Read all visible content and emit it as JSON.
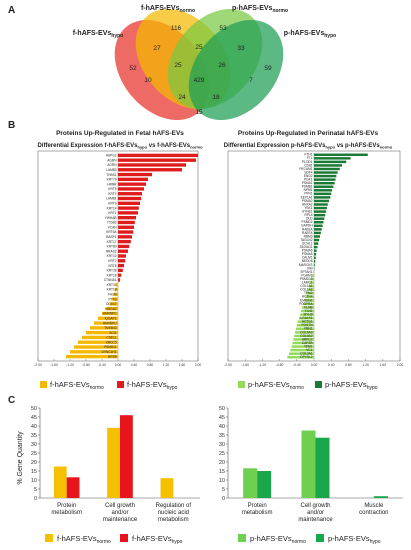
{
  "panels": {
    "a": "A",
    "b": "B",
    "c": "C"
  },
  "venn": {
    "labels": {
      "f_normo": [
        "f-hAFS-EVs",
        "normo"
      ],
      "f_hypo": [
        "f-hAFS-EVs",
        "hypo"
      ],
      "p_normo": [
        "p-hAFS-EVs",
        "normo"
      ],
      "p_hypo": [
        "p-hAFS-EVs",
        "hypo"
      ]
    },
    "colors": {
      "f_hypo": "#e8302a",
      "f_normo": "#f5b800",
      "p_normo": "#7ac943",
      "p_hypo": "#1e9e54"
    },
    "counts": [
      "116",
      "53",
      "52",
      "27",
      "25",
      "33",
      "59",
      "25",
      "26",
      "10",
      "429",
      "7",
      "24",
      "18",
      "15"
    ]
  },
  "chart_data": [
    {
      "type": "bar",
      "orientation": "horizontal",
      "title": "Proteins Up-Regulated in Fetal hAFS-EVs",
      "subtitle": [
        "Differential Expression f-hAFS-EVs",
        "hypo",
        " vs f-hAFS-EVs",
        "normo"
      ],
      "xlim": [
        -2.0,
        2.0
      ],
      "xticks": [
        "-2.00",
        "-1.60",
        "-1.20",
        "-0.80",
        "-0.40",
        "0.00",
        "0.40",
        "0.80",
        "1.20",
        "1.60",
        "2.00"
      ],
      "categories": [
        "HSPG2",
        "AGRN",
        "AGRN",
        "LAMB3",
        "THBS1",
        "KRT79",
        "HRNR",
        "KRT5",
        "KRT7",
        "LAMB1",
        "KRT9",
        "KRT14",
        "KRT1",
        "YWHAB",
        "ITGB3",
        "VCAN",
        "KRT6A",
        "BASP1",
        "KRT17",
        "KRT80",
        "RRAS2",
        "KRT10",
        "KRT2",
        "KRT8",
        "KRT28",
        "KRT18",
        "CTNNA1",
        "KRT31",
        "KRT19",
        "FASN",
        "PTX3",
        "DDX17",
        "HMGA2",
        "HNRNPC",
        "IQGAP1",
        "HNRNPU",
        "TMEB43",
        "SCIL",
        "CSE1L",
        "XRCC5",
        "PSMD11",
        "DYNC1H1",
        "RPS9"
      ],
      "values": [
        2.0,
        1.95,
        1.7,
        1.6,
        0.85,
        0.75,
        0.7,
        0.65,
        0.6,
        0.58,
        0.55,
        0.52,
        0.5,
        0.45,
        0.42,
        0.4,
        0.38,
        0.35,
        0.32,
        0.28,
        0.25,
        0.2,
        0.18,
        0.15,
        0.12,
        0.08,
        0.05,
        -0.05,
        -0.08,
        -0.1,
        -0.15,
        -0.2,
        -0.3,
        -0.4,
        -0.5,
        -0.6,
        -0.7,
        -0.8,
        -0.9,
        -1.0,
        -1.1,
        -1.2,
        -1.3
      ],
      "colors": {
        "positive": "#e01b1b",
        "negative": "#f5b800"
      },
      "legend": [
        [
          "f-hAFS-EVs",
          "normo"
        ],
        [
          "f-hAFS-EVs",
          "hypo"
        ]
      ]
    },
    {
      "type": "bar",
      "orientation": "horizontal",
      "title": "Proteins Up-Regulated in Perinatal hAFS-EVs",
      "subtitle": [
        "Differential Expression p-hAFS-EVs",
        "hypo",
        " vs p-hAFS-EVs",
        "normo"
      ],
      "xlim": [
        -2.0,
        2.0
      ],
      "xticks": [
        "-2.00",
        "-1.60",
        "-1.20",
        "-0.80",
        "-0.40",
        "0.00",
        "0.40",
        "0.80",
        "1.20",
        "1.60",
        "2.00"
      ],
      "categories": [
        "FTH1",
        "FTL",
        "PLOD1",
        "CD81",
        "PECAM1",
        "SDF4",
        "ENO2",
        "PGK1",
        "PSMA1",
        "PSMB1",
        "NPM1",
        "PFN1",
        "EEF1A1",
        "PSMA2",
        "ANXA2",
        "YBX1",
        "SYNE1",
        "RPL4",
        "DLD",
        "PSMD2",
        "GAPDH",
        "RAB1A",
        "RAB7A",
        "RBM3",
        "TAGLN2",
        "UCHL1",
        "S100A11",
        "PSMA6",
        "PSMA5",
        "CALM1",
        "NEDD8",
        "MARCKS",
        "VIM",
        "SPTAN1",
        "PGAM1",
        "PSMD13",
        "LAMC1",
        "COL1A1",
        "COL1A2",
        "TPM2",
        "ACTN4",
        "EMILIN1",
        "PDGFRA",
        "FLNB",
        "TLN1",
        "MYH9",
        "LGALS1",
        "ACTG1",
        "POSTN",
        "FBN1",
        "COL6A3",
        "COL6A2",
        "ARPC2",
        "CAPZB",
        "TPM1",
        "VCL",
        "COL3A1",
        "DPYSL2"
      ],
      "values": [
        1.25,
        0.85,
        0.75,
        0.65,
        0.6,
        0.55,
        0.52,
        0.5,
        0.48,
        0.45,
        0.42,
        0.4,
        0.38,
        0.35,
        0.32,
        0.3,
        0.28,
        0.26,
        0.24,
        0.22,
        0.2,
        0.18,
        0.16,
        0.14,
        0.12,
        0.1,
        0.08,
        0.06,
        0.05,
        0.04,
        0.03,
        0.02,
        0.01,
        -0.02,
        -0.05,
        -0.08,
        -0.1,
        -0.12,
        -0.15,
        -0.18,
        -0.2,
        -0.22,
        -0.25,
        -0.28,
        -0.3,
        -0.32,
        -0.35,
        -0.38,
        -0.4,
        -0.42,
        -0.44,
        -0.46,
        -0.48,
        -0.5,
        -0.52,
        -0.55,
        -0.58,
        -0.62
      ],
      "colors": {
        "positive": "#1b7a35",
        "negative": "#96d95b"
      },
      "legend": [
        [
          "p-hAFS-EVs",
          "normo"
        ],
        [
          "p-hAFS-EVs",
          "hypo"
        ]
      ]
    },
    {
      "type": "bar",
      "ylabel": "% Gene Quantity",
      "ylim": [
        0,
        50
      ],
      "yticks": [
        "0",
        "5",
        "10",
        "15",
        "20",
        "25",
        "30",
        "35",
        "40",
        "45",
        "50"
      ],
      "categories": [
        [
          "Protein",
          "metabolism"
        ],
        [
          "Cell growth",
          "and/or",
          "maintenance"
        ],
        [
          "Regulation of",
          "nucleic acid",
          "metabolism"
        ]
      ],
      "series": [
        {
          "name": [
            "f-hAFS-EVs",
            "normo"
          ],
          "color": "#f5c000",
          "values": [
            17.5,
            39,
            11
          ]
        },
        {
          "name": [
            "f-hAFS-EVs",
            "hypo"
          ],
          "color": "#e8141b",
          "values": [
            11.5,
            46,
            0
          ]
        }
      ]
    },
    {
      "type": "bar",
      "ylim": [
        0,
        50
      ],
      "yticks": [
        "0",
        "5",
        "10",
        "15",
        "20",
        "25",
        "30",
        "35",
        "40",
        "45",
        "50"
      ],
      "categories": [
        [
          "Protein",
          "metabolism"
        ],
        [
          "Cell growth",
          "and/or",
          "maintenance"
        ],
        [
          "Muscle",
          "contraction"
        ]
      ],
      "series": [
        {
          "name": [
            "p-hAFS-EVs",
            "normo"
          ],
          "color": "#6fcf4f",
          "values": [
            16.5,
            37.5,
            0
          ]
        },
        {
          "name": [
            "p-hAFS-EVs",
            "hypo"
          ],
          "color": "#1aa64a",
          "values": [
            15,
            33.5,
            1
          ]
        }
      ]
    }
  ]
}
